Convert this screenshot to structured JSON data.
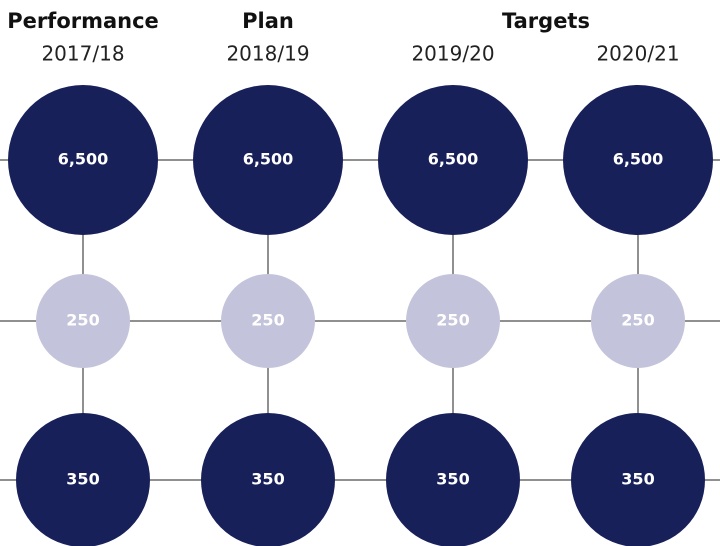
{
  "headers": [
    "Performance",
    "Plan",
    "Targets"
  ],
  "columns": [
    {
      "year": "2017/18",
      "rows": [
        "6,500",
        "250",
        "350"
      ]
    },
    {
      "year": "2018/19",
      "rows": [
        "6,500",
        "250",
        "350"
      ]
    },
    {
      "year": "2019/20",
      "rows": [
        "6,500",
        "250",
        "350"
      ]
    },
    {
      "year": "2020/21",
      "rows": [
        "6,500",
        "250",
        "350"
      ]
    }
  ]
}
